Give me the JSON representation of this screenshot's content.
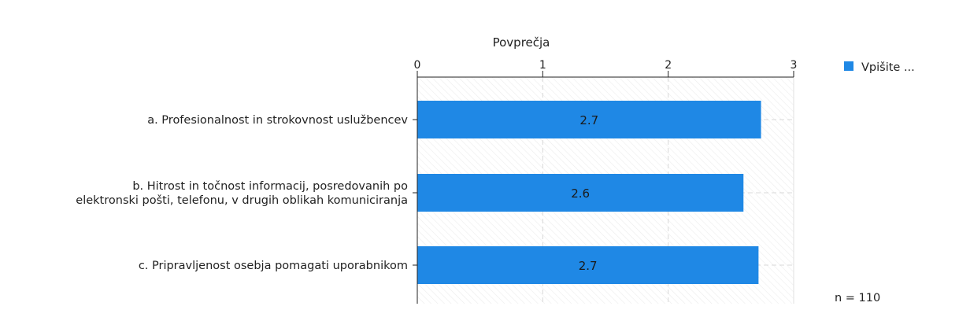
{
  "chart_data": {
    "type": "bar",
    "orientation": "horizontal",
    "title": "",
    "xlabel": "Povprečja",
    "xlim": [
      0,
      3
    ],
    "ticks": [
      "0",
      "1",
      "2",
      "3"
    ],
    "categories": [
      [
        "a. Profesionalnost in strokovnost uslužbencev"
      ],
      [
        "b. Hitrost in točnost informacij, posredovanih po",
        "elektronski pošti, telefonu, v drugih oblikah komuniciranja"
      ],
      [
        "c. Pripravljenost osebja pomagati uporabnikom"
      ]
    ],
    "series": [
      {
        "name": "Vpišite ...",
        "values": [
          2.74,
          2.6,
          2.72
        ],
        "labels": [
          "2.7",
          "2.6",
          "2.7"
        ]
      }
    ],
    "legend_position": "right",
    "grid": true,
    "footnote": "n = 110",
    "colors": {
      "bar": "#1f88e5",
      "axis": "#222222",
      "grid": "#d8d8d8",
      "hatch": "#ebebeb"
    }
  }
}
